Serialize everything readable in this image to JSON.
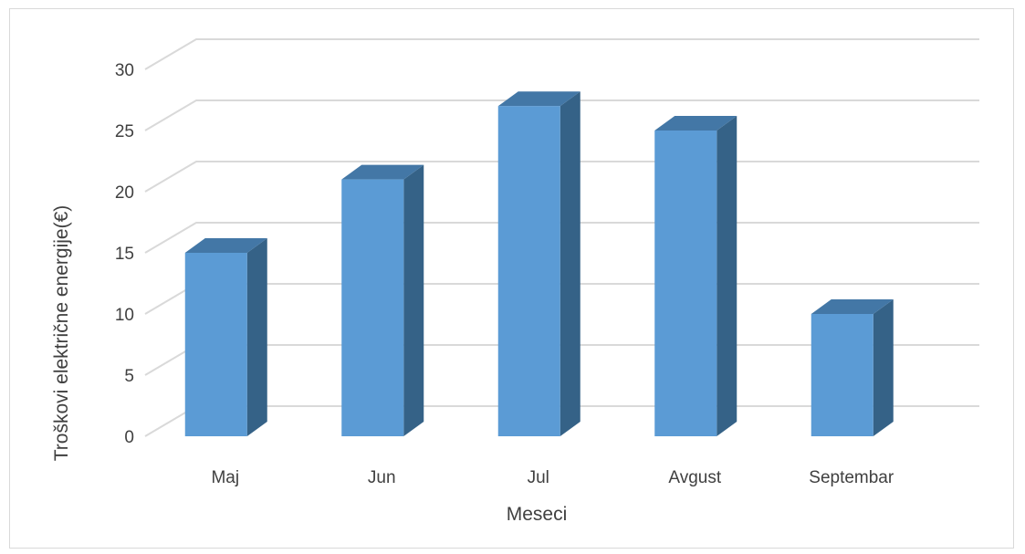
{
  "chart_data": {
    "type": "bar",
    "style": "3d-column",
    "categories": [
      "Maj",
      "Jun",
      "Jul",
      "Avgust",
      "Septembar"
    ],
    "values": [
      15,
      21,
      27,
      25,
      10
    ],
    "title": "",
    "xlabel": "Meseci",
    "ylabel": "Troškovi električne energije(€)",
    "ylim": [
      0,
      30
    ],
    "yticks": [
      0,
      5,
      10,
      15,
      20,
      25,
      30
    ],
    "grid": true,
    "legend": "none",
    "colors": {
      "front": "#5b9bd5",
      "side": "#356287",
      "top": "#4377a6",
      "grid": "#d9d9d9",
      "text": "#404040"
    }
  }
}
